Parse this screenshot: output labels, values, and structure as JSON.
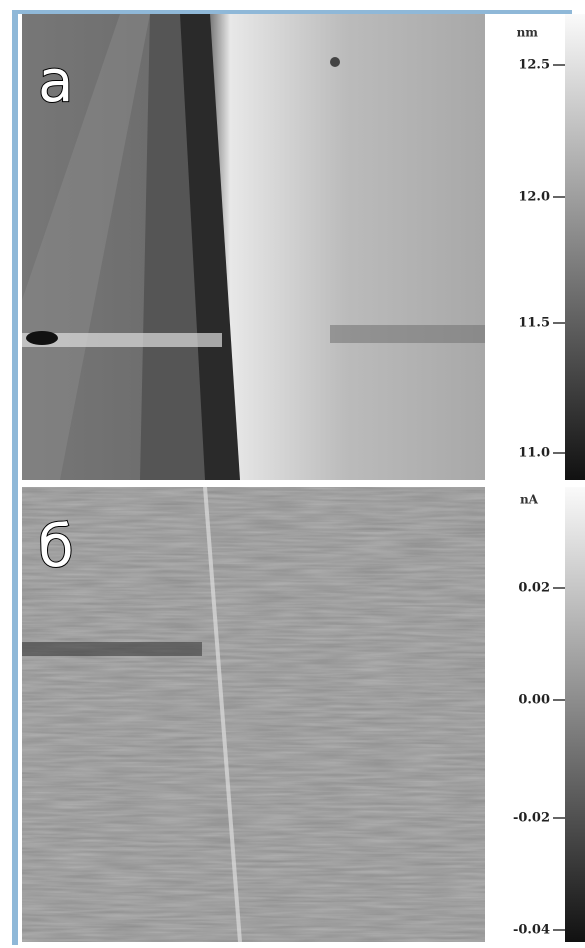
{
  "panels": [
    {
      "label": "а",
      "unit": "nm",
      "ticks": [
        "12.5",
        "12.0",
        "11.5",
        "11.0"
      ]
    },
    {
      "label": "б",
      "unit": "nA",
      "ticks": [
        "0.02",
        "0.00",
        "-0.02",
        "-0.04"
      ]
    }
  ]
}
